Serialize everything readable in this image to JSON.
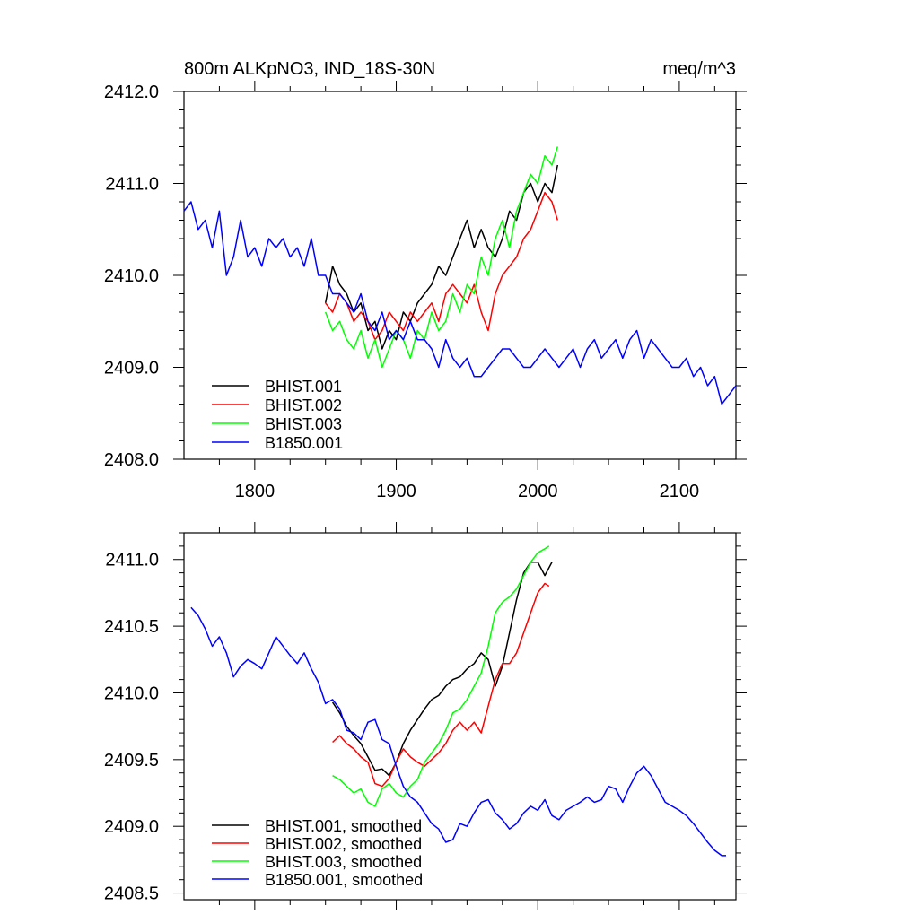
{
  "chart_data": [
    {
      "type": "line",
      "title": "800m ALKpNO3, IND_18S-30N",
      "units": "meq/m^3",
      "xlim": [
        1750,
        2140
      ],
      "ylim": [
        2408.0,
        2412.0
      ],
      "x_ticks": [
        "1800",
        "1900",
        "2000",
        "2100"
      ],
      "x_tick_values": [
        1800,
        1900,
        2000,
        2100
      ],
      "y_ticks": [
        "2408.0",
        "2409.0",
        "2410.0",
        "2411.0",
        "2412.0"
      ],
      "y_tick_values": [
        2408.0,
        2409.0,
        2410.0,
        2411.0,
        2412.0
      ],
      "legend_position": "bottom-left",
      "series": [
        {
          "name": "BHIST.001",
          "color": "#000000",
          "x": [
            1850,
            1855,
            1860,
            1865,
            1870,
            1875,
            1880,
            1885,
            1890,
            1895,
            1900,
            1905,
            1910,
            1915,
            1920,
            1925,
            1930,
            1935,
            1940,
            1945,
            1950,
            1955,
            1960,
            1965,
            1970,
            1975,
            1980,
            1985,
            1990,
            1995,
            2000,
            2005,
            2010,
            2014
          ],
          "y": [
            2409.7,
            2410.1,
            2409.9,
            2409.8,
            2409.6,
            2409.7,
            2409.4,
            2409.5,
            2409.2,
            2409.4,
            2409.3,
            2409.6,
            2409.5,
            2409.7,
            2409.8,
            2409.9,
            2410.1,
            2410.0,
            2410.2,
            2410.4,
            2410.6,
            2410.3,
            2410.5,
            2410.3,
            2410.2,
            2410.4,
            2410.7,
            2410.6,
            2410.9,
            2411.0,
            2410.8,
            2411.0,
            2410.9,
            2411.2
          ]
        },
        {
          "name": "BHIST.002",
          "color": "#ff0000",
          "x": [
            1850,
            1855,
            1860,
            1865,
            1870,
            1875,
            1880,
            1885,
            1890,
            1895,
            1900,
            1905,
            1910,
            1915,
            1920,
            1925,
            1930,
            1935,
            1940,
            1945,
            1950,
            1955,
            1960,
            1965,
            1970,
            1975,
            1980,
            1985,
            1990,
            1995,
            2000,
            2005,
            2010,
            2014
          ],
          "y": [
            2409.7,
            2409.6,
            2409.8,
            2409.7,
            2409.5,
            2409.6,
            2409.5,
            2409.3,
            2409.4,
            2409.6,
            2409.5,
            2409.4,
            2409.6,
            2409.5,
            2409.6,
            2409.7,
            2409.5,
            2409.8,
            2409.9,
            2409.8,
            2409.7,
            2409.9,
            2409.6,
            2409.4,
            2409.8,
            2410.0,
            2410.1,
            2410.2,
            2410.4,
            2410.5,
            2410.7,
            2410.9,
            2410.8,
            2410.6
          ]
        },
        {
          "name": "BHIST.003",
          "color": "#00ff00",
          "x": [
            1850,
            1855,
            1860,
            1865,
            1870,
            1875,
            1880,
            1885,
            1890,
            1895,
            1900,
            1905,
            1910,
            1915,
            1920,
            1925,
            1930,
            1935,
            1940,
            1945,
            1950,
            1955,
            1960,
            1965,
            1970,
            1975,
            1980,
            1985,
            1990,
            1995,
            2000,
            2005,
            2010,
            2014
          ],
          "y": [
            2409.6,
            2409.4,
            2409.5,
            2409.3,
            2409.2,
            2409.4,
            2409.1,
            2409.3,
            2409.0,
            2409.2,
            2409.4,
            2409.3,
            2409.1,
            2409.4,
            2409.3,
            2409.6,
            2409.4,
            2409.5,
            2409.8,
            2409.6,
            2409.9,
            2409.8,
            2410.2,
            2410.0,
            2410.4,
            2410.6,
            2410.3,
            2410.7,
            2410.9,
            2411.1,
            2411.0,
            2411.3,
            2411.2,
            2411.4
          ]
        },
        {
          "name": "B1850.001",
          "color": "#0000ff",
          "x": [
            1750,
            1755,
            1760,
            1765,
            1770,
            1775,
            1780,
            1785,
            1790,
            1795,
            1800,
            1805,
            1810,
            1815,
            1820,
            1825,
            1830,
            1835,
            1840,
            1845,
            1850,
            1855,
            1860,
            1865,
            1870,
            1875,
            1880,
            1885,
            1890,
            1895,
            1900,
            1905,
            1910,
            1915,
            1920,
            1925,
            1930,
            1935,
            1940,
            1945,
            1950,
            1955,
            1960,
            1965,
            1970,
            1975,
            1980,
            1985,
            1990,
            1995,
            2000,
            2005,
            2010,
            2015,
            2020,
            2025,
            2030,
            2035,
            2040,
            2045,
            2050,
            2055,
            2060,
            2065,
            2070,
            2075,
            2080,
            2085,
            2090,
            2095,
            2100,
            2105,
            2110,
            2115,
            2120,
            2125,
            2130,
            2135,
            2140
          ],
          "y": [
            2410.7,
            2410.8,
            2410.5,
            2410.6,
            2410.3,
            2410.7,
            2410.0,
            2410.2,
            2410.6,
            2410.2,
            2410.3,
            2410.1,
            2410.4,
            2410.3,
            2410.4,
            2410.2,
            2410.3,
            2410.1,
            2410.4,
            2410.0,
            2410.0,
            2409.8,
            2409.8,
            2409.7,
            2409.6,
            2409.8,
            2409.5,
            2409.4,
            2409.6,
            2409.3,
            2409.4,
            2409.3,
            2409.5,
            2409.3,
            2409.3,
            2409.2,
            2409.0,
            2409.3,
            2409.1,
            2409.0,
            2409.1,
            2408.9,
            2408.9,
            2409.0,
            2409.1,
            2409.2,
            2409.2,
            2409.1,
            2409.0,
            2409.0,
            2409.1,
            2409.2,
            2409.1,
            2409.0,
            2409.1,
            2409.2,
            2409.0,
            2409.2,
            2409.3,
            2409.1,
            2409.2,
            2409.3,
            2409.1,
            2409.3,
            2409.4,
            2409.1,
            2409.3,
            2409.2,
            2409.1,
            2409.0,
            2409.0,
            2409.1,
            2408.9,
            2409.0,
            2408.8,
            2408.9,
            2408.6,
            2408.7,
            2408.8
          ]
        }
      ]
    },
    {
      "type": "line",
      "xlim": [
        1750,
        2140
      ],
      "ylim": [
        2408.45,
        2411.2
      ],
      "y_ticks": [
        "2408.5",
        "2409.0",
        "2409.5",
        "2410.0",
        "2410.5",
        "2411.0"
      ],
      "y_tick_values": [
        2408.5,
        2409.0,
        2409.5,
        2410.0,
        2410.5,
        2411.0
      ],
      "legend_position": "bottom-left",
      "series": [
        {
          "name": "BHIST.001, smoothed",
          "color": "#000000",
          "x": [
            1855,
            1860,
            1865,
            1870,
            1875,
            1880,
            1885,
            1890,
            1895,
            1900,
            1905,
            1910,
            1915,
            1920,
            1925,
            1930,
            1935,
            1940,
            1945,
            1950,
            1955,
            1960,
            1965,
            1970,
            1975,
            1980,
            1985,
            1990,
            1995,
            2000,
            2005,
            2010
          ],
          "y": [
            2409.93,
            2409.85,
            2409.75,
            2409.68,
            2409.62,
            2409.52,
            2409.42,
            2409.43,
            2409.38,
            2409.48,
            2409.62,
            2409.72,
            2409.8,
            2409.88,
            2409.95,
            2409.98,
            2410.05,
            2410.1,
            2410.12,
            2410.18,
            2410.22,
            2410.3,
            2410.25,
            2410.05,
            2410.2,
            2410.45,
            2410.7,
            2410.9,
            2410.98,
            2410.98,
            2410.88,
            2410.98
          ]
        },
        {
          "name": "BHIST.002, smoothed",
          "color": "#ff0000",
          "x": [
            1855,
            1860,
            1865,
            1870,
            1875,
            1880,
            1885,
            1890,
            1895,
            1900,
            1905,
            1910,
            1915,
            1920,
            1925,
            1930,
            1935,
            1940,
            1945,
            1950,
            1955,
            1960,
            1965,
            1970,
            1975,
            1980,
            1985,
            1990,
            1995,
            2000,
            2005,
            2008
          ],
          "y": [
            2409.63,
            2409.68,
            2409.62,
            2409.58,
            2409.52,
            2409.48,
            2409.32,
            2409.3,
            2409.36,
            2409.48,
            2409.58,
            2409.52,
            2409.48,
            2409.45,
            2409.5,
            2409.55,
            2409.62,
            2409.72,
            2409.78,
            2409.72,
            2409.78,
            2409.7,
            2409.9,
            2410.1,
            2410.22,
            2410.22,
            2410.3,
            2410.45,
            2410.6,
            2410.75,
            2410.82,
            2410.8
          ]
        },
        {
          "name": "BHIST.003, smoothed",
          "color": "#00ff00",
          "x": [
            1855,
            1860,
            1865,
            1870,
            1875,
            1880,
            1885,
            1890,
            1895,
            1900,
            1905,
            1910,
            1915,
            1920,
            1925,
            1930,
            1935,
            1940,
            1945,
            1950,
            1955,
            1960,
            1965,
            1970,
            1975,
            1980,
            1985,
            1990,
            1995,
            2000,
            2005,
            2008
          ],
          "y": [
            2409.38,
            2409.35,
            2409.3,
            2409.25,
            2409.28,
            2409.18,
            2409.15,
            2409.28,
            2409.32,
            2409.25,
            2409.22,
            2409.3,
            2409.35,
            2409.48,
            2409.55,
            2409.62,
            2409.72,
            2409.85,
            2409.88,
            2409.95,
            2410.05,
            2410.15,
            2410.35,
            2410.6,
            2410.68,
            2410.72,
            2410.78,
            2410.88,
            2410.98,
            2411.05,
            2411.08,
            2411.1
          ]
        },
        {
          "name": "B1850.001, smoothed",
          "color": "#0000ff",
          "x": [
            1755,
            1760,
            1765,
            1770,
            1775,
            1780,
            1785,
            1790,
            1795,
            1800,
            1805,
            1810,
            1815,
            1820,
            1825,
            1830,
            1835,
            1840,
            1845,
            1850,
            1855,
            1860,
            1865,
            1870,
            1875,
            1880,
            1885,
            1890,
            1895,
            1900,
            1905,
            1910,
            1915,
            1920,
            1925,
            1930,
            1935,
            1940,
            1945,
            1950,
            1955,
            1960,
            1965,
            1970,
            1975,
            1980,
            1985,
            1990,
            1995,
            2000,
            2005,
            2010,
            2015,
            2020,
            2025,
            2030,
            2035,
            2040,
            2045,
            2050,
            2055,
            2060,
            2065,
            2070,
            2075,
            2080,
            2085,
            2090,
            2095,
            2100,
            2105,
            2110,
            2115,
            2120,
            2125,
            2130,
            2133
          ],
          "y": [
            2410.64,
            2410.58,
            2410.48,
            2410.35,
            2410.42,
            2410.3,
            2410.12,
            2410.2,
            2410.25,
            2410.22,
            2410.18,
            2410.3,
            2410.42,
            2410.35,
            2410.28,
            2410.22,
            2410.3,
            2410.18,
            2410.08,
            2409.92,
            2409.95,
            2409.88,
            2409.72,
            2409.7,
            2409.65,
            2409.78,
            2409.8,
            2409.65,
            2409.62,
            2409.45,
            2409.3,
            2409.22,
            2409.18,
            2409.1,
            2409.02,
            2408.98,
            2408.88,
            2408.9,
            2409.02,
            2409.0,
            2409.1,
            2409.18,
            2409.2,
            2409.1,
            2409.05,
            2408.98,
            2409.02,
            2409.1,
            2409.15,
            2409.12,
            2409.2,
            2409.08,
            2409.05,
            2409.12,
            2409.15,
            2409.18,
            2409.22,
            2409.18,
            2409.2,
            2409.3,
            2409.28,
            2409.18,
            2409.3,
            2409.4,
            2409.45,
            2409.38,
            2409.28,
            2409.18,
            2409.15,
            2409.12,
            2409.08,
            2409.02,
            2408.95,
            2408.88,
            2408.82,
            2408.78,
            2408.78
          ]
        }
      ]
    }
  ]
}
